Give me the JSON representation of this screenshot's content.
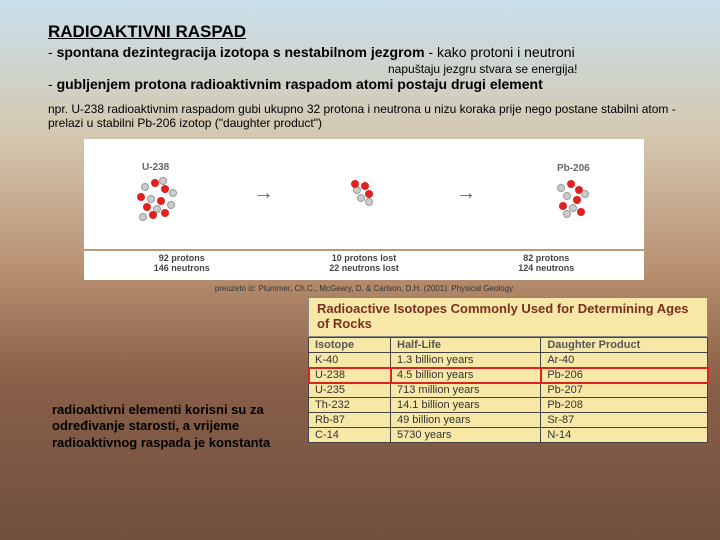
{
  "title": "RADIOAKTIVNI RASPAD",
  "line1_prefix": "- ",
  "line1_bold": "spontana dezintegracija izotopa s nestabilnom jezgrom",
  "line1_after": " - kako protoni i neutroni",
  "sub_note": "napuštaju jezgru stvara se energija!",
  "line2_prefix": "- ",
  "line2_bold": "gubljenjem protona radioaktivnim raspadom atomi postaju drugi element",
  "example": "npr. U-238 radioaktivnim raspadom gubi ukupno 32 protona i neutrona u nizu koraka prije nego postane stabilni atom - prelazi u stabilni Pb-206 izotop (\"daughter product\")",
  "diagram": {
    "left_label": "U-238",
    "right_label": "Pb-206",
    "stats_left_1": "92 protons",
    "stats_left_2": "146 neutrons",
    "stats_mid_1": "10 protons lost",
    "stats_mid_2": "22 neutrons lost",
    "stats_right_1": "82 protons",
    "stats_right_2": "124 neutrons"
  },
  "citation": "preuzeto iz: Plummer, Ch.C., McGeary, D. & Carlson, D.H. (2001): Physical Geology",
  "table_title": "Radioactive Isotopes Commonly Used for Determining Ages of Rocks",
  "table": {
    "headers": [
      "Isotope",
      "Half-Life",
      "Daughter Product"
    ],
    "rows": [
      {
        "c": [
          "K-40",
          "1.3 billion years",
          "Ar-40"
        ],
        "hl": false
      },
      {
        "c": [
          "U-238",
          "4.5 billion years",
          "Pb-206"
        ],
        "hl": true
      },
      {
        "c": [
          "U-235",
          "713 million years",
          "Pb-207"
        ],
        "hl": false
      },
      {
        "c": [
          "Th-232",
          "14.1 billion years",
          "Pb-208"
        ],
        "hl": false
      },
      {
        "c": [
          "Rb-87",
          "49 billion years",
          "Sr-87"
        ],
        "hl": false
      },
      {
        "c": [
          "C-14",
          "5730 years",
          "N-14"
        ],
        "hl": false
      }
    ]
  },
  "bottom_text": "radioaktivni elementi korisni su za određivanje starosti, a vrijeme radioaktivnog raspada je konstanta"
}
